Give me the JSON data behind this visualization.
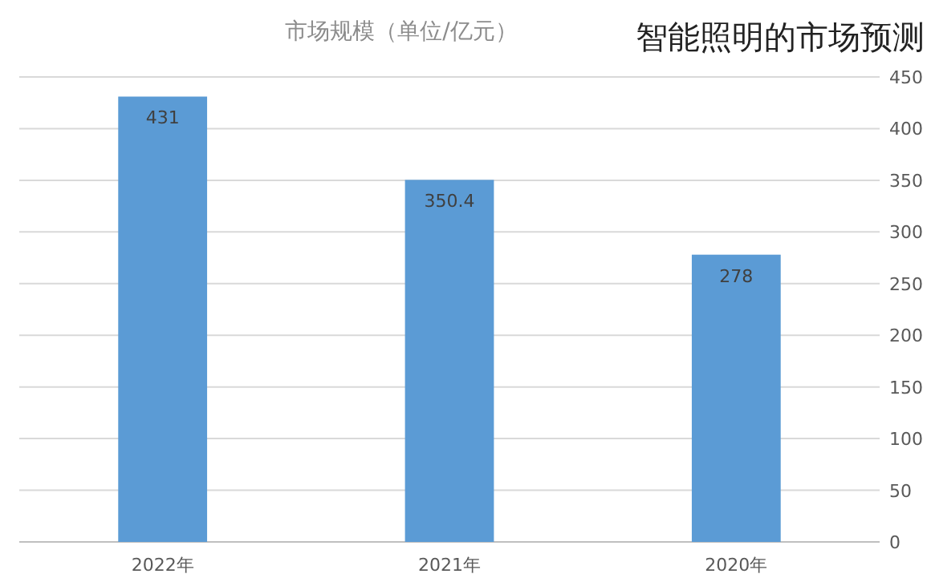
{
  "chart_data": {
    "type": "bar",
    "title": "智能照明的市场预测",
    "subtitle": "市场规模（单位/亿元）",
    "categories": [
      "2022年",
      "2021年",
      "2020年"
    ],
    "values": [
      431,
      350.4,
      278
    ],
    "color": "#5b9bd5",
    "ylim": [
      0,
      450
    ],
    "yticks": [
      0,
      50,
      100,
      150,
      200,
      250,
      300,
      350,
      400,
      450
    ],
    "grid": "y",
    "data_labels": true
  }
}
